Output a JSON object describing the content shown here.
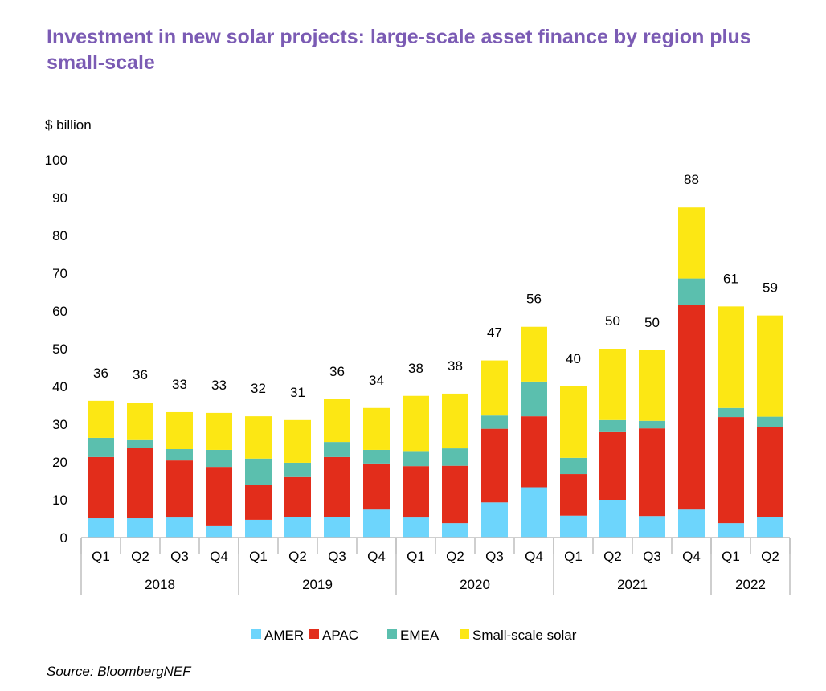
{
  "chart_data": {
    "type": "bar",
    "stacked": true,
    "title": "Investment in new solar projects: large-scale asset finance by region plus small-scale",
    "ylabel": "$ billion",
    "xlabel": "",
    "ylim": [
      0,
      100
    ],
    "yticks": [
      0,
      10,
      20,
      30,
      40,
      50,
      60,
      70,
      80,
      90,
      100
    ],
    "grid": false,
    "legend_position": "bottom",
    "categories": [
      "Q1",
      "Q2",
      "Q3",
      "Q4",
      "Q1",
      "Q2",
      "Q3",
      "Q4",
      "Q1",
      "Q2",
      "Q3",
      "Q4",
      "Q1",
      "Q2",
      "Q3",
      "Q4",
      "Q1",
      "Q2"
    ],
    "years": [
      {
        "label": "2018",
        "quarters": 4
      },
      {
        "label": "2019",
        "quarters": 4
      },
      {
        "label": "2020",
        "quarters": 4
      },
      {
        "label": "2021",
        "quarters": 4
      },
      {
        "label": "2022",
        "quarters": 2
      }
    ],
    "series": [
      {
        "name": "AMER",
        "color": "#6dd5fc",
        "values": [
          5.1,
          5.1,
          5.3,
          3.0,
          4.7,
          5.5,
          5.5,
          7.4,
          5.3,
          3.8,
          9.3,
          13.3,
          5.8,
          10.0,
          5.7,
          7.4,
          3.8,
          5.5
        ]
      },
      {
        "name": "APAC",
        "color": "#e22d1b",
        "values": [
          16.2,
          18.7,
          15.1,
          15.7,
          9.3,
          10.5,
          15.8,
          12.2,
          13.6,
          15.2,
          19.5,
          18.8,
          11.0,
          17.9,
          23.2,
          54.2,
          28.1,
          23.7
        ]
      },
      {
        "name": "EMEA",
        "color": "#5bbfae",
        "values": [
          5.1,
          2.2,
          3.0,
          4.5,
          6.9,
          3.8,
          4.0,
          3.6,
          4.0,
          4.6,
          3.5,
          9.2,
          4.3,
          3.2,
          2.0,
          7.0,
          2.4,
          2.8
        ]
      },
      {
        "name": "Small-scale solar",
        "color": "#fce714",
        "values": [
          9.8,
          9.7,
          9.8,
          9.8,
          11.2,
          11.3,
          11.3,
          11.1,
          14.6,
          14.5,
          14.6,
          14.5,
          18.9,
          18.9,
          18.7,
          18.8,
          26.9,
          26.8
        ]
      }
    ],
    "total_labels": [
      "36",
      "36",
      "33",
      "33",
      "32",
      "31",
      "36",
      "34",
      "38",
      "38",
      "47",
      "56",
      "40",
      "50",
      "50",
      "88",
      "61",
      "59"
    ],
    "source": "Source: BloombergNEF"
  }
}
